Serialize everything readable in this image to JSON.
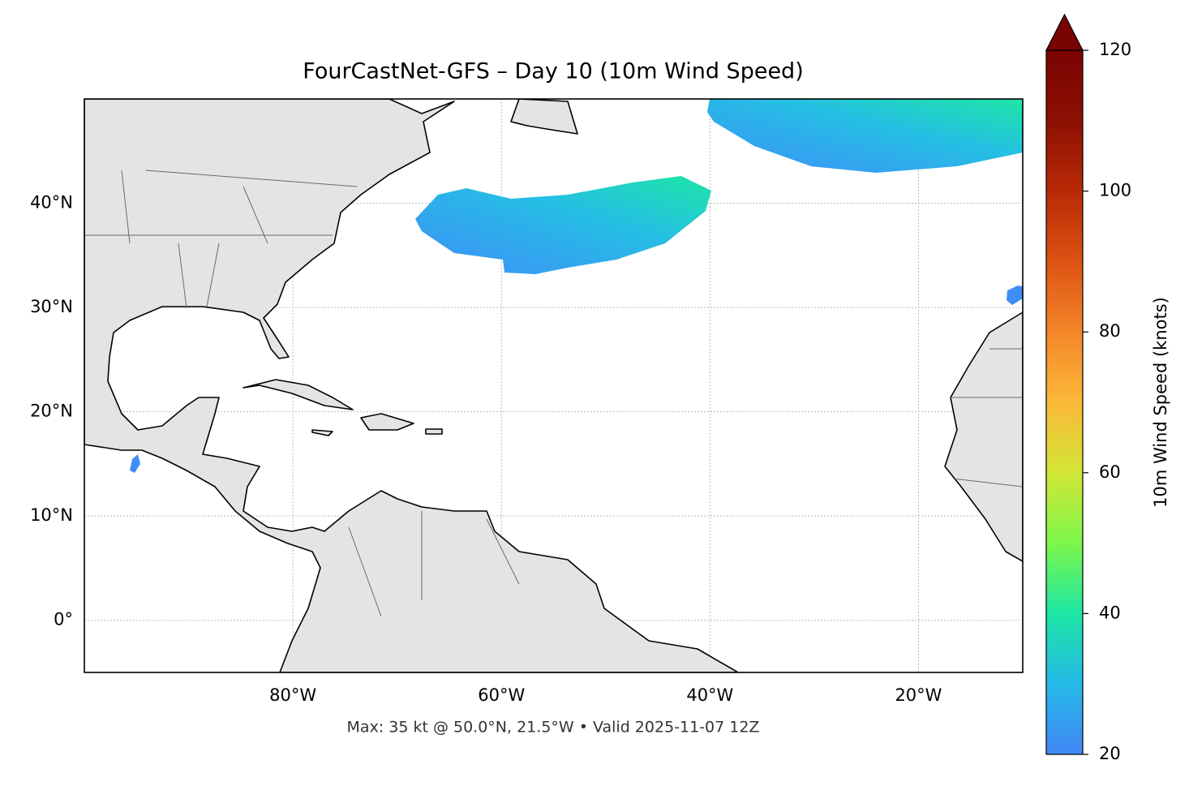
{
  "map": {
    "title": "FourCastNet-GFS – Day 10 (10m Wind Speed)",
    "note": "Max: 35 kt @ 50.0°N, 21.5°W • Valid 2025-11-07 12Z",
    "lonlim": [
      -100,
      -10
    ],
    "latlim": [
      -5,
      50
    ],
    "lon_ticks": [
      {
        "value": -80,
        "label": "80°W"
      },
      {
        "value": -60,
        "label": "60°W"
      },
      {
        "value": -40,
        "label": "40°W"
      },
      {
        "value": -20,
        "label": "20°W"
      }
    ],
    "lat_ticks": [
      {
        "value": 0,
        "label": "0°"
      },
      {
        "value": 10,
        "label": "10°N"
      },
      {
        "value": 20,
        "label": "20°N"
      },
      {
        "value": 30,
        "label": "30°N"
      },
      {
        "value": 40,
        "label": "40°N"
      }
    ],
    "grid": true,
    "colorbar": {
      "label": "10m Wind Speed (knots)",
      "lim": [
        20,
        120
      ],
      "ticks": [
        20,
        40,
        60,
        80,
        100,
        120
      ],
      "colormap": [
        "#4286f5",
        "#25b9e8",
        "#1de6a5",
        "#7cf74a",
        "#d2e636",
        "#fbb838",
        "#f5862a",
        "#dc5213",
        "#b82a07",
        "#8d1003",
        "#7a0403"
      ]
    }
  }
}
